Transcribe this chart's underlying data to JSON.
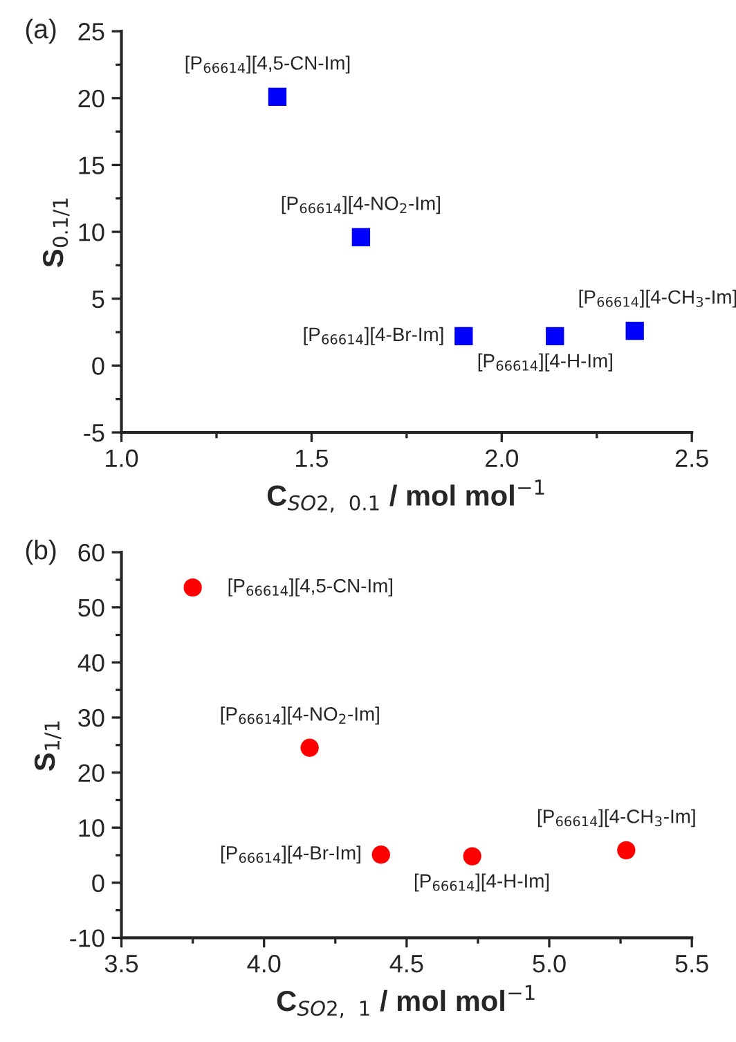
{
  "chart_data": [
    {
      "type": "scatter",
      "xlabel": "C$_{SO2, 0.1}$ / mol mol$^{−1}$",
      "ylabel": "S$_{0.1/1}$",
      "marker": "square",
      "grid": false,
      "xlim": [
        1.0,
        2.5
      ],
      "xticks": [
        {
          "value": 1.0,
          "label": "1.0"
        },
        {
          "value": 1.5,
          "label": "1.5"
        },
        {
          "value": 2.0,
          "label": "2.0"
        },
        {
          "value": 2.5,
          "label": "2.5"
        }
      ],
      "ylim": [
        -5,
        25
      ],
      "yticks": [
        -5,
        0,
        5,
        10,
        15,
        20,
        25
      ],
      "series": [
        {
          "color": "#0000ff",
          "x": [
            1.41,
            1.63,
            1.9,
            2.14,
            2.35
          ],
          "values": [
            20.1,
            9.6,
            2.2,
            2.2,
            2.6
          ]
        }
      ],
      "annotations": [
        "(a)",
        {
          "text": "[P$_{66614}$][4,5-CN-Im]",
          "x": 1.41,
          "y": 20.1
        },
        {
          "text": "[P$_{66614}$][4-NO$_{2}$-Im]",
          "x": 1.63,
          "y": 9.6
        },
        {
          "text": "[P$_{66614}$][4-Br-Im]",
          "x": 1.9,
          "y": 2.2
        },
        {
          "text": "[P$_{66614}$][4-H-Im]",
          "x": 2.14,
          "y": 2.2
        },
        {
          "text": "[P$_{66614}$][4-CH$_{3}$-Im]",
          "x": 2.35,
          "y": 2.6
        }
      ]
    },
    {
      "type": "scatter",
      "xlabel": "C$_{SO2, 1}$ / mol mol$^{−1}$",
      "ylabel": "S$_{1/1}$",
      "marker": "circle",
      "grid": false,
      "xlim": [
        3.5,
        5.5
      ],
      "xticks": [
        {
          "value": 3.5,
          "label": "3.5"
        },
        {
          "value": 4.0,
          "label": "4.0"
        },
        {
          "value": 4.5,
          "label": "4.5"
        },
        {
          "value": 5.0,
          "label": "5.0"
        },
        {
          "value": 5.5,
          "label": "5.5"
        }
      ],
      "ylim": [
        -10,
        60
      ],
      "yticks": [
        -10,
        0,
        10,
        20,
        30,
        40,
        50,
        60
      ],
      "series": [
        {
          "color": "#ff0000",
          "x": [
            3.75,
            4.16,
            4.41,
            4.73,
            5.27
          ],
          "values": [
            53.6,
            24.5,
            5.1,
            4.8,
            5.9
          ]
        }
      ],
      "annotations": [
        "(b)",
        {
          "text": "[P$_{66614}$][4,5-CN-Im]",
          "x": 3.75,
          "y": 53.6
        },
        {
          "text": "[P$_{66614}$][4-NO$_{2}$-Im]",
          "x": 4.16,
          "y": 24.5
        },
        {
          "text": "[P$_{66614}$][4-Br-Im]",
          "x": 4.41,
          "y": 5.1
        },
        {
          "text": "[P$_{66614}$][4-H-Im]",
          "x": 4.73,
          "y": 4.8
        },
        {
          "text": "[P$_{66614}$][4-CH$_{3}$-Im]",
          "x": 5.27,
          "y": 5.9
        }
      ]
    }
  ]
}
